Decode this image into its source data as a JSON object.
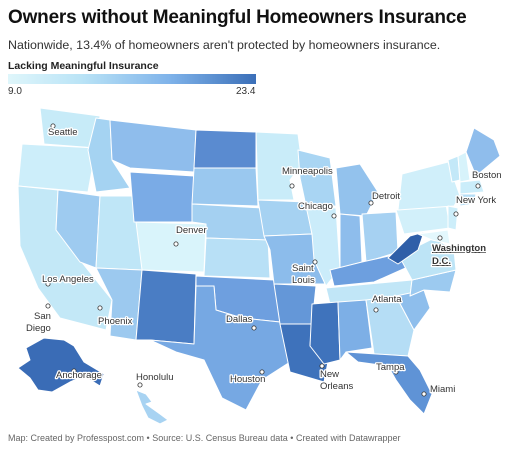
{
  "title": "Owners without Meaningful Homeowners Insurance",
  "subtitle": "Nationwide, 13.4% of homeowners aren't protected by homeowners insurance.",
  "legend": {
    "title": "Lacking Meaningful Insurance",
    "min": "9.0",
    "max": "23.4",
    "colors": [
      "#dff6fb",
      "#b9e3f6",
      "#7fb3ea",
      "#3b6fb8"
    ]
  },
  "cities": [
    {
      "name": "Seattle"
    },
    {
      "name": "Minneapolis"
    },
    {
      "name": "Boston"
    },
    {
      "name": "Detroit"
    },
    {
      "name": "New York"
    },
    {
      "name": "Chicago"
    },
    {
      "name": "Denver"
    },
    {
      "name": "Washington D.C."
    },
    {
      "name": "Saint Louis"
    },
    {
      "name": "Los Angeles"
    },
    {
      "name": "San Diego"
    },
    {
      "name": "Phoenix"
    },
    {
      "name": "Atlanta"
    },
    {
      "name": "Dallas"
    },
    {
      "name": "Anchorage"
    },
    {
      "name": "Honolulu"
    },
    {
      "name": "Houston"
    },
    {
      "name": "New Orleans"
    },
    {
      "name": "Tampa"
    },
    {
      "name": "Miami"
    }
  ],
  "footer": "Map: Created by Professpost.com • Source: U.S. Census Bureau data • Created with Datawrapper"
}
